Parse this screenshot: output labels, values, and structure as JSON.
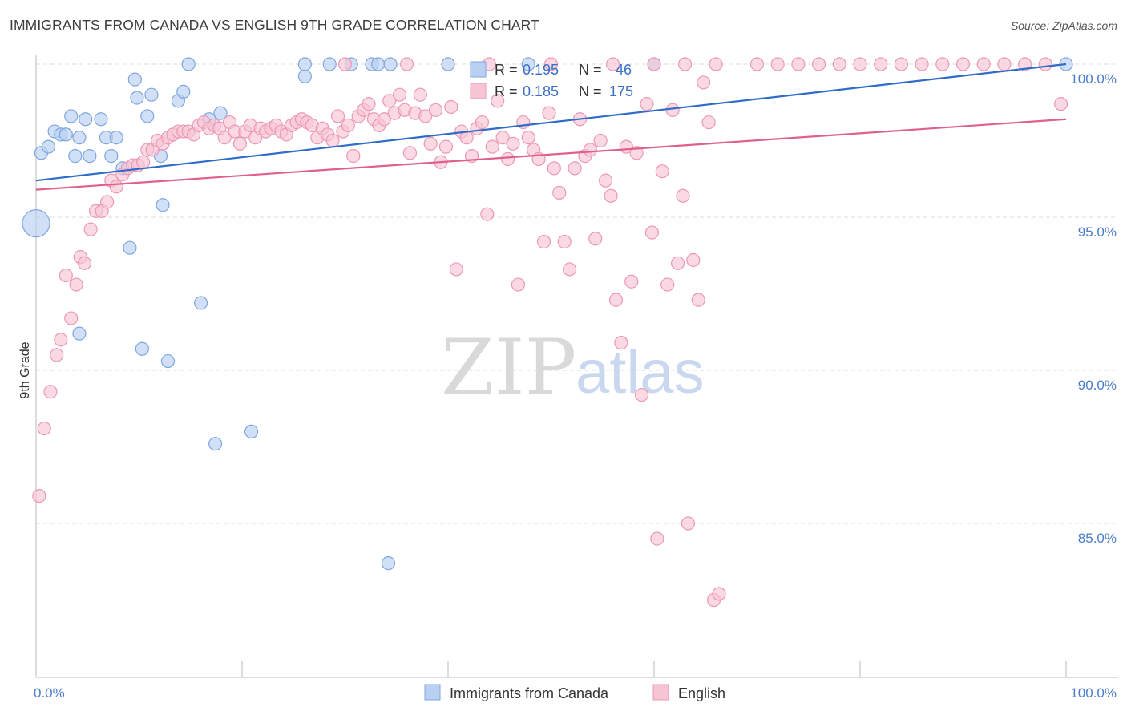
{
  "title": "IMMIGRANTS FROM CANADA VS ENGLISH 9TH GRADE CORRELATION CHART",
  "source": "Source: ZipAtlas.com",
  "watermark": {
    "zip": "ZIP",
    "atlas": "atlas"
  },
  "colors": {
    "blue_fill": "#b8d0f2",
    "blue_stroke": "#7fa6e0",
    "blue_line": "#2f6cc9",
    "pink_fill": "#f7c4d4",
    "pink_stroke": "#eb98b4",
    "pink_line": "#e0608c",
    "grid": "#dcdcdc",
    "tick_label": "#4a7cc9"
  },
  "legend": {
    "rows": [
      {
        "r_label": "R = ",
        "r_value": "0.195",
        "n_label": "N = ",
        "n_value": "46"
      },
      {
        "r_label": "R = ",
        "r_value": "0.185",
        "n_label": "N = ",
        "n_value": "175"
      }
    ]
  },
  "chart_data": {
    "type": "scatter",
    "ylabel": "9th Grade",
    "xlabel": "",
    "xlim": [
      0,
      100
    ],
    "ylim": [
      80.5,
      100.8
    ],
    "x_tick_labels": [
      "0.0%",
      "100.0%"
    ],
    "y_ticks": [
      85,
      90,
      95,
      100
    ],
    "y_tick_labels": [
      "85.0%",
      "90.0%",
      "95.0%",
      "100.0%"
    ],
    "grid": "horizontal dashed",
    "legend_position": "top-center",
    "series": [
      {
        "name": "Immigrants from Canada",
        "trend": {
          "x": [
            0,
            100
          ],
          "y": [
            96.2,
            100.0
          ]
        },
        "points": [
          {
            "x": 0.5,
            "y": 97.1
          },
          {
            "x": 1.2,
            "y": 97.3
          },
          {
            "x": 1.8,
            "y": 97.8
          },
          {
            "x": 2.4,
            "y": 97.7
          },
          {
            "x": 2.9,
            "y": 97.7
          },
          {
            "x": 3.4,
            "y": 98.3
          },
          {
            "x": 3.8,
            "y": 97.0
          },
          {
            "x": 4.2,
            "y": 97.6
          },
          {
            "x": 4.8,
            "y": 98.2
          },
          {
            "x": 5.2,
            "y": 97.0
          },
          {
            "x": 6.3,
            "y": 98.2
          },
          {
            "x": 6.8,
            "y": 97.6
          },
          {
            "x": 7.3,
            "y": 97.0
          },
          {
            "x": 7.8,
            "y": 97.6
          },
          {
            "x": 8.4,
            "y": 96.6
          },
          {
            "x": 9.1,
            "y": 94.0
          },
          {
            "x": 9.6,
            "y": 99.5
          },
          {
            "x": 9.8,
            "y": 98.9
          },
          {
            "x": 10.3,
            "y": 90.7
          },
          {
            "x": 10.8,
            "y": 98.3
          },
          {
            "x": 11.2,
            "y": 99.0
          },
          {
            "x": 12.1,
            "y": 97.0
          },
          {
            "x": 12.3,
            "y": 95.4
          },
          {
            "x": 12.8,
            "y": 90.3
          },
          {
            "x": 13.8,
            "y": 98.8
          },
          {
            "x": 14.3,
            "y": 99.1
          },
          {
            "x": 14.8,
            "y": 100.0
          },
          {
            "x": 16.0,
            "y": 92.2
          },
          {
            "x": 16.8,
            "y": 98.2
          },
          {
            "x": 17.4,
            "y": 87.6
          },
          {
            "x": 17.9,
            "y": 98.4
          },
          {
            "x": 20.9,
            "y": 88.0
          },
          {
            "x": 4.2,
            "y": 91.2
          },
          {
            "x": 26.1,
            "y": 99.6
          },
          {
            "x": 26.1,
            "y": 100.0
          },
          {
            "x": 28.5,
            "y": 100.0
          },
          {
            "x": 30.6,
            "y": 100.0
          },
          {
            "x": 32.6,
            "y": 100.0
          },
          {
            "x": 33.2,
            "y": 100.0
          },
          {
            "x": 34.4,
            "y": 100.0
          },
          {
            "x": 34.2,
            "y": 83.7
          },
          {
            "x": 40.0,
            "y": 100.0
          },
          {
            "x": 47.8,
            "y": 100.0
          },
          {
            "x": 60.0,
            "y": 100.0
          },
          {
            "x": 100.0,
            "y": 100.0
          },
          {
            "x": 0.0,
            "y": 94.8,
            "big": true
          }
        ]
      },
      {
        "name": "English",
        "trend": {
          "x": [
            0,
            100
          ],
          "y": [
            95.9,
            98.2
          ]
        },
        "points": [
          {
            "x": 0.3,
            "y": 85.9
          },
          {
            "x": 0.8,
            "y": 88.1
          },
          {
            "x": 1.4,
            "y": 89.3
          },
          {
            "x": 2.0,
            "y": 90.5
          },
          {
            "x": 2.4,
            "y": 91.0
          },
          {
            "x": 2.9,
            "y": 93.1
          },
          {
            "x": 3.4,
            "y": 91.7
          },
          {
            "x": 3.9,
            "y": 92.8
          },
          {
            "x": 4.3,
            "y": 93.7
          },
          {
            "x": 4.7,
            "y": 93.5
          },
          {
            "x": 5.3,
            "y": 94.6
          },
          {
            "x": 5.8,
            "y": 95.2
          },
          {
            "x": 6.4,
            "y": 95.2
          },
          {
            "x": 6.9,
            "y": 95.5
          },
          {
            "x": 7.3,
            "y": 96.2
          },
          {
            "x": 7.8,
            "y": 96.0
          },
          {
            "x": 8.4,
            "y": 96.4
          },
          {
            "x": 8.9,
            "y": 96.6
          },
          {
            "x": 9.4,
            "y": 96.7
          },
          {
            "x": 9.9,
            "y": 96.7
          },
          {
            "x": 10.4,
            "y": 96.8
          },
          {
            "x": 10.8,
            "y": 97.2
          },
          {
            "x": 11.3,
            "y": 97.2
          },
          {
            "x": 11.8,
            "y": 97.5
          },
          {
            "x": 12.3,
            "y": 97.4
          },
          {
            "x": 12.8,
            "y": 97.6
          },
          {
            "x": 13.3,
            "y": 97.7
          },
          {
            "x": 13.8,
            "y": 97.8
          },
          {
            "x": 14.3,
            "y": 97.8
          },
          {
            "x": 14.8,
            "y": 97.8
          },
          {
            "x": 15.3,
            "y": 97.7
          },
          {
            "x": 15.8,
            "y": 98.0
          },
          {
            "x": 16.3,
            "y": 98.1
          },
          {
            "x": 16.8,
            "y": 97.9
          },
          {
            "x": 17.3,
            "y": 98.0
          },
          {
            "x": 17.8,
            "y": 97.9
          },
          {
            "x": 18.3,
            "y": 97.6
          },
          {
            "x": 18.8,
            "y": 98.1
          },
          {
            "x": 19.3,
            "y": 97.8
          },
          {
            "x": 19.8,
            "y": 97.4
          },
          {
            "x": 20.3,
            "y": 97.8
          },
          {
            "x": 20.8,
            "y": 98.0
          },
          {
            "x": 21.3,
            "y": 97.6
          },
          {
            "x": 21.8,
            "y": 97.9
          },
          {
            "x": 22.3,
            "y": 97.8
          },
          {
            "x": 22.8,
            "y": 97.9
          },
          {
            "x": 23.3,
            "y": 98.0
          },
          {
            "x": 23.8,
            "y": 97.8
          },
          {
            "x": 24.3,
            "y": 97.7
          },
          {
            "x": 24.8,
            "y": 98.0
          },
          {
            "x": 25.3,
            "y": 98.1
          },
          {
            "x": 25.8,
            "y": 98.2
          },
          {
            "x": 26.3,
            "y": 98.1
          },
          {
            "x": 26.8,
            "y": 98.0
          },
          {
            "x": 27.3,
            "y": 97.6
          },
          {
            "x": 27.8,
            "y": 97.9
          },
          {
            "x": 28.3,
            "y": 97.7
          },
          {
            "x": 28.8,
            "y": 97.5
          },
          {
            "x": 29.3,
            "y": 98.3
          },
          {
            "x": 29.8,
            "y": 97.8
          },
          {
            "x": 30.3,
            "y": 98.0
          },
          {
            "x": 30.8,
            "y": 97.0
          },
          {
            "x": 31.3,
            "y": 98.3
          },
          {
            "x": 31.8,
            "y": 98.5
          },
          {
            "x": 32.3,
            "y": 98.7
          },
          {
            "x": 32.8,
            "y": 98.2
          },
          {
            "x": 33.3,
            "y": 98.0
          },
          {
            "x": 33.8,
            "y": 98.2
          },
          {
            "x": 34.3,
            "y": 98.8
          },
          {
            "x": 34.8,
            "y": 98.4
          },
          {
            "x": 35.3,
            "y": 99.0
          },
          {
            "x": 35.8,
            "y": 98.5
          },
          {
            "x": 36.3,
            "y": 97.1
          },
          {
            "x": 36.8,
            "y": 98.4
          },
          {
            "x": 37.3,
            "y": 99.0
          },
          {
            "x": 37.8,
            "y": 98.3
          },
          {
            "x": 38.3,
            "y": 97.4
          },
          {
            "x": 38.8,
            "y": 98.5
          },
          {
            "x": 39.3,
            "y": 96.8
          },
          {
            "x": 39.8,
            "y": 97.3
          },
          {
            "x": 40.3,
            "y": 98.6
          },
          {
            "x": 40.8,
            "y": 93.3
          },
          {
            "x": 41.3,
            "y": 97.8
          },
          {
            "x": 41.8,
            "y": 97.6
          },
          {
            "x": 42.3,
            "y": 97.0
          },
          {
            "x": 42.8,
            "y": 97.9
          },
          {
            "x": 43.3,
            "y": 98.1
          },
          {
            "x": 43.8,
            "y": 95.1
          },
          {
            "x": 44.3,
            "y": 97.3
          },
          {
            "x": 44.8,
            "y": 98.8
          },
          {
            "x": 45.3,
            "y": 97.6
          },
          {
            "x": 45.8,
            "y": 96.9
          },
          {
            "x": 46.3,
            "y": 97.4
          },
          {
            "x": 46.8,
            "y": 92.8
          },
          {
            "x": 47.3,
            "y": 98.1
          },
          {
            "x": 47.8,
            "y": 97.6
          },
          {
            "x": 48.3,
            "y": 97.2
          },
          {
            "x": 48.8,
            "y": 96.9
          },
          {
            "x": 49.3,
            "y": 94.2
          },
          {
            "x": 49.8,
            "y": 98.4
          },
          {
            "x": 50.3,
            "y": 96.6
          },
          {
            "x": 50.8,
            "y": 95.8
          },
          {
            "x": 51.3,
            "y": 94.2
          },
          {
            "x": 51.8,
            "y": 93.3
          },
          {
            "x": 52.3,
            "y": 96.6
          },
          {
            "x": 52.8,
            "y": 98.2
          },
          {
            "x": 53.3,
            "y": 97.0
          },
          {
            "x": 53.8,
            "y": 97.2
          },
          {
            "x": 54.3,
            "y": 94.3
          },
          {
            "x": 54.8,
            "y": 97.5
          },
          {
            "x": 55.3,
            "y": 96.2
          },
          {
            "x": 55.8,
            "y": 95.7
          },
          {
            "x": 56.3,
            "y": 92.3
          },
          {
            "x": 56.8,
            "y": 90.9
          },
          {
            "x": 57.3,
            "y": 97.3
          },
          {
            "x": 57.8,
            "y": 92.9
          },
          {
            "x": 58.3,
            "y": 97.1
          },
          {
            "x": 58.8,
            "y": 89.2
          },
          {
            "x": 59.3,
            "y": 98.7
          },
          {
            "x": 59.8,
            "y": 94.5
          },
          {
            "x": 60.3,
            "y": 84.5
          },
          {
            "x": 60.8,
            "y": 96.5
          },
          {
            "x": 61.3,
            "y": 92.8
          },
          {
            "x": 61.8,
            "y": 98.5
          },
          {
            "x": 62.3,
            "y": 93.5
          },
          {
            "x": 62.8,
            "y": 95.7
          },
          {
            "x": 63.3,
            "y": 85.0
          },
          {
            "x": 63.8,
            "y": 93.6
          },
          {
            "x": 64.3,
            "y": 92.3
          },
          {
            "x": 64.8,
            "y": 99.4
          },
          {
            "x": 65.3,
            "y": 98.1
          },
          {
            "x": 65.8,
            "y": 82.5
          },
          {
            "x": 66.3,
            "y": 82.7
          },
          {
            "x": 30.0,
            "y": 100.0
          },
          {
            "x": 36.0,
            "y": 100.0
          },
          {
            "x": 44.0,
            "y": 100.0
          },
          {
            "x": 50.0,
            "y": 100.0
          },
          {
            "x": 56.0,
            "y": 100.0
          },
          {
            "x": 60.0,
            "y": 100.0
          },
          {
            "x": 63.0,
            "y": 100.0
          },
          {
            "x": 66.0,
            "y": 100.0
          },
          {
            "x": 70.0,
            "y": 100.0
          },
          {
            "x": 72.0,
            "y": 100.0
          },
          {
            "x": 74.0,
            "y": 100.0
          },
          {
            "x": 76.0,
            "y": 100.0
          },
          {
            "x": 78.0,
            "y": 100.0
          },
          {
            "x": 80.0,
            "y": 100.0
          },
          {
            "x": 82.0,
            "y": 100.0
          },
          {
            "x": 84.0,
            "y": 100.0
          },
          {
            "x": 86.0,
            "y": 100.0
          },
          {
            "x": 88.0,
            "y": 100.0
          },
          {
            "x": 90.0,
            "y": 100.0
          },
          {
            "x": 92.0,
            "y": 100.0
          },
          {
            "x": 94.0,
            "y": 100.0
          },
          {
            "x": 96.0,
            "y": 100.0
          },
          {
            "x": 98.0,
            "y": 100.0
          },
          {
            "x": 99.5,
            "y": 98.7
          }
        ]
      }
    ]
  }
}
